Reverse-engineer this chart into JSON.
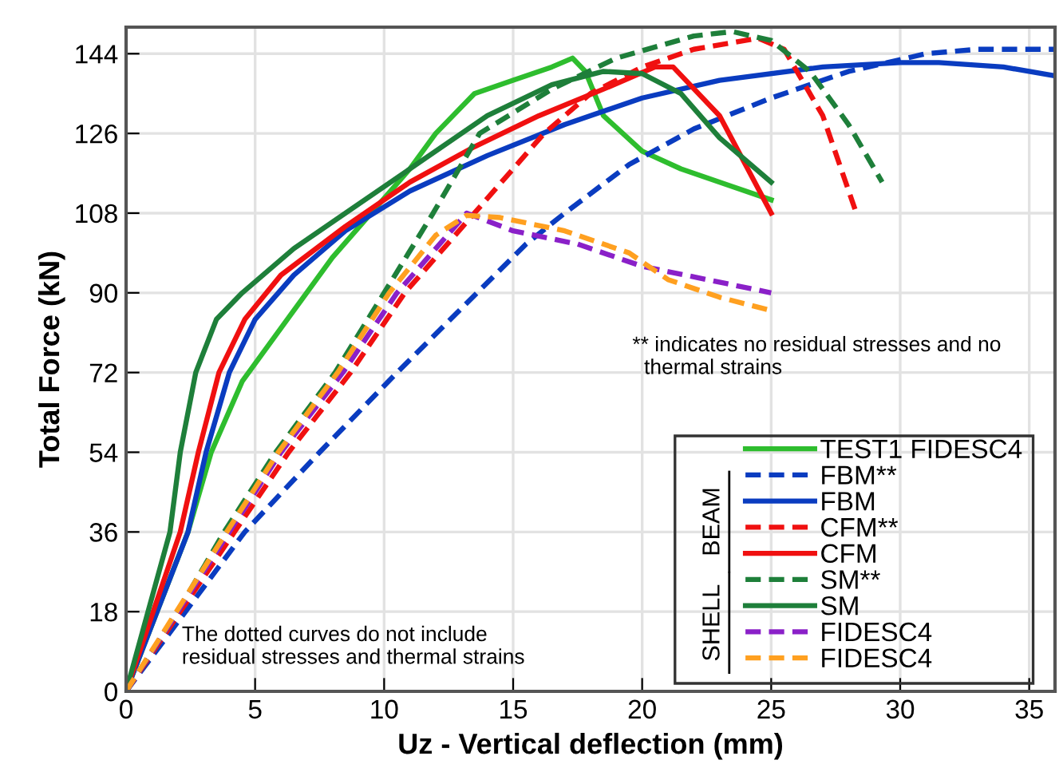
{
  "chart_data": {
    "type": "line",
    "xlabel": "Uz - Vertical deflection (mm)",
    "ylabel": "Total Force (kN)",
    "xlim": [
      0,
      36
    ],
    "ylim": [
      0,
      150
    ],
    "xticks": [
      0,
      5,
      10,
      15,
      20,
      25,
      30,
      35
    ],
    "yticks": [
      0,
      18,
      36,
      54,
      72,
      90,
      108,
      126,
      144
    ],
    "grid": true,
    "legend": "bottom right",
    "marker": "none",
    "series": [
      {
        "name": "TEST1 FIDESC4",
        "color": "#2ebd2e",
        "line_style": "solid",
        "x": [
          0,
          2.4,
          3.3,
          4.5,
          6.5,
          8,
          9.5,
          11,
          12,
          13.5,
          15,
          16.5,
          17.3,
          17.8,
          18.5,
          20,
          21.5,
          23.5,
          25
        ],
        "values": [
          0,
          36,
          54,
          70,
          86,
          98,
          108,
          118,
          126,
          135,
          138,
          141,
          143,
          140,
          130,
          122,
          118,
          114,
          111
        ]
      },
      {
        "name": "FBM**",
        "color": "#0a3cc0",
        "line_style": "dashed",
        "x": [
          0,
          4.6,
          7.5,
          10.5,
          13.6,
          15.5,
          17,
          19.5,
          22,
          25,
          28,
          31,
          33,
          36
        ],
        "values": [
          0,
          36,
          54,
          72,
          90,
          101,
          108,
          119,
          127,
          134,
          140,
          144,
          145,
          145
        ]
      },
      {
        "name": "FBM",
        "color": "#0a3cc0",
        "line_style": "solid",
        "x": [
          0,
          2.4,
          3.1,
          4,
          5,
          6.5,
          8.5,
          11,
          14,
          17,
          20,
          23,
          27,
          30,
          31.5,
          34,
          36
        ],
        "values": [
          0,
          36,
          54,
          72,
          84,
          94,
          104,
          113,
          121,
          128,
          134,
          138,
          141,
          142,
          142,
          141,
          139
        ]
      },
      {
        "name": "CFM**",
        "color": "#f01010",
        "line_style": "dashed",
        "x": [
          0,
          4.2,
          6.3,
          8.7,
          10.8,
          13.5,
          16.2,
          18,
          20,
          22,
          24.5,
          25.5,
          27,
          28.3
        ],
        "values": [
          0,
          36,
          54,
          72,
          90,
          108,
          126,
          135,
          141,
          145,
          147.5,
          145,
          130,
          108
        ]
      },
      {
        "name": "CFM",
        "color": "#f01010",
        "line_style": "solid",
        "x": [
          0,
          2.1,
          2.8,
          3.6,
          4.6,
          6,
          8.5,
          11,
          13.5,
          16,
          18.5,
          20.5,
          21.2,
          23,
          25
        ],
        "values": [
          0,
          36,
          54,
          72,
          84,
          94,
          105,
          115,
          123,
          130,
          136,
          141,
          141,
          130,
          108
        ]
      },
      {
        "name": "SM**",
        "color": "#1e7f3a",
        "line_style": "dashed",
        "x": [
          0,
          2,
          3.8,
          5.8,
          8.1,
          11.9,
          13.7,
          16.5,
          19,
          22,
          23.5,
          25,
          26.5,
          28,
          29.3
        ],
        "values": [
          0,
          18,
          36,
          54,
          72,
          108,
          126,
          136,
          143,
          148,
          149,
          147,
          140,
          128,
          115
        ]
      },
      {
        "name": "SM",
        "color": "#1e7f3a",
        "line_style": "solid",
        "x": [
          0,
          1.7,
          2.1,
          2.7,
          3.5,
          4.5,
          6.5,
          9,
          11.5,
          14,
          16.5,
          18.5,
          20,
          21.5,
          23,
          25
        ],
        "values": [
          0,
          36,
          54,
          72,
          84,
          90,
          100,
          110,
          120,
          130,
          137,
          140,
          139.5,
          135,
          125,
          115
        ]
      },
      {
        "name": "FIDESC4",
        "color": "#8a20c8",
        "line_style": "dashed",
        "x": [
          0,
          4,
          6,
          8.4,
          10.5,
          12,
          13.2,
          15,
          17.5,
          20,
          22.5,
          25
        ],
        "values": [
          0,
          36,
          54,
          72,
          90,
          100,
          108,
          104,
          101,
          96,
          93,
          90
        ]
      },
      {
        "name": "FIDESC4",
        "color": "#ffa020",
        "line_style": "dashed",
        "x": [
          0,
          3.9,
          5.9,
          8.2,
          10.2,
          12,
          13.2,
          14.5,
          17,
          19.5,
          21,
          23,
          25
        ],
        "values": [
          0,
          36,
          54,
          72,
          90,
          103,
          107.5,
          107,
          104,
          99,
          93,
          89,
          86
        ]
      }
    ],
    "annotations": [
      "** indicates no residual stresses and no\n  thermal strains",
      "The dotted curves do not include\nresidual stresses and thermal strains",
      "BEAM",
      "SHELL"
    ]
  }
}
